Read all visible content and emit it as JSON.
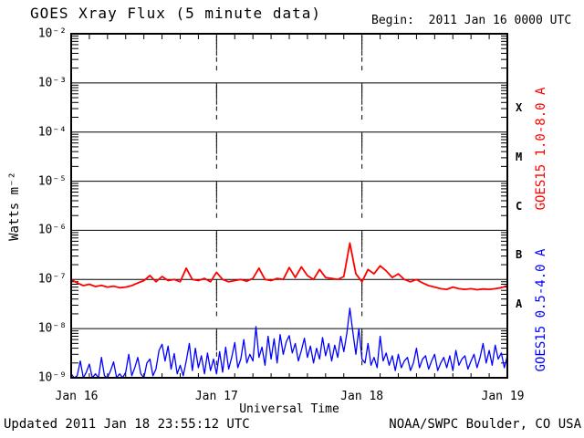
{
  "header": {
    "title": "GOES Xray Flux (5 minute data)",
    "begin_label": "Begin:  2011 Jan 16 0000 UTC"
  },
  "footer": {
    "updated": "Updated 2011 Jan 18 23:55:12 UTC",
    "source": "NOAA/SWPC Boulder, CO USA"
  },
  "colors": {
    "long_band": "#ff0000",
    "short_band": "#0000ff",
    "axis": "#000000",
    "background": "#ffffff"
  },
  "chart_data": {
    "type": "line",
    "title": "GOES Xray Flux (5 minute data)",
    "xlabel": "Universal Time",
    "ylabel": "Watts m⁻²",
    "x_unit": "hours since 2011 Jan 16 0000 UTC",
    "xlim": [
      0,
      72
    ],
    "ylog10_lim": [
      -9,
      -2
    ],
    "grid": "horizontal-major",
    "legend_position": "right-rotated",
    "x_tick_hours": [
      0,
      24,
      48,
      72
    ],
    "x_tick_labels": [
      "Jan 16",
      "Jan 17",
      "Jan 18",
      "Jan 19"
    ],
    "x_minor_tick_hours_step": 3,
    "day_boundary_hours": [
      24,
      48
    ],
    "y_tick_log10": [
      -2,
      -3,
      -4,
      -5,
      -6,
      -7,
      -8,
      -9
    ],
    "y_tick_labels": [
      "10⁻²",
      "10⁻³",
      "10⁻⁴",
      "10⁻⁵",
      "10⁻⁶",
      "10⁻⁷",
      "10⁻⁸",
      "10⁻⁹"
    ],
    "flare_classes": [
      {
        "label": "X",
        "log10_mid": -3.5
      },
      {
        "label": "M",
        "log10_mid": -4.5
      },
      {
        "label": "C",
        "log10_mid": -5.5
      },
      {
        "label": "B",
        "log10_mid": -6.5
      },
      {
        "label": "A",
        "log10_mid": -7.5
      }
    ],
    "series": [
      {
        "name": "GOES15 1.0-8.0 A",
        "color": "#ff0000",
        "x0_hours": 0,
        "dx_hours": 1,
        "values": [
          1e-07,
          8.5e-08,
          7.5e-08,
          8e-08,
          7.2e-08,
          7.6e-08,
          7e-08,
          7.3e-08,
          6.8e-08,
          7e-08,
          7.5e-08,
          8.5e-08,
          9.5e-08,
          1.2e-07,
          9e-08,
          1.15e-07,
          9.5e-08,
          1e-07,
          9e-08,
          1.7e-07,
          1e-07,
          9.5e-08,
          1.05e-07,
          9e-08,
          1.4e-07,
          1e-07,
          9e-08,
          9.5e-08,
          1e-07,
          9.2e-08,
          1.05e-07,
          1.7e-07,
          1e-07,
          9.5e-08,
          1.05e-07,
          1e-07,
          1.75e-07,
          1.1e-07,
          1.8e-07,
          1.2e-07,
          1e-07,
          1.6e-07,
          1.1e-07,
          1.05e-07,
          1e-07,
          1.15e-07,
          5.5e-07,
          1.3e-07,
          9e-08,
          1.6e-07,
          1.3e-07,
          1.9e-07,
          1.5e-07,
          1.1e-07,
          1.3e-07,
          1e-07,
          9e-08,
          1e-07,
          8.5e-08,
          7.5e-08,
          7e-08,
          6.5e-08,
          6.3e-08,
          7e-08,
          6.5e-08,
          6.3e-08,
          6.5e-08,
          6.2e-08,
          6.4e-08,
          6.3e-08,
          6.5e-08,
          6.8e-08,
          7.5e-08
        ]
      },
      {
        "name": "GOES15 0.5-4.0 A",
        "color": "#0000ff",
        "x0_hours": 0,
        "dx_hours": 0.5,
        "values": [
          1.2e-09,
          1e-09,
          1.1e-09,
          2.2e-09,
          1e-09,
          1.3e-09,
          1.9e-09,
          1e-09,
          1.2e-09,
          1e-09,
          2.6e-09,
          1.1e-09,
          1e-09,
          1.4e-09,
          2.1e-09,
          1e-09,
          1.2e-09,
          1e-09,
          1.3e-09,
          3e-09,
          1.1e-09,
          1.6e-09,
          2.6e-09,
          1.2e-09,
          1e-09,
          2e-09,
          2.4e-09,
          1.1e-09,
          1.5e-09,
          3.6e-09,
          4.8e-09,
          2.2e-09,
          4.4e-09,
          1.5e-09,
          3.1e-09,
          1.2e-09,
          1.8e-09,
          1.1e-09,
          2.2e-09,
          5e-09,
          1.4e-09,
          4e-09,
          1.6e-09,
          2.8e-09,
          1.2e-09,
          3.2e-09,
          1.4e-09,
          2.4e-09,
          1.2e-09,
          3.4e-09,
          1.3e-09,
          4.2e-09,
          1.5e-09,
          2.6e-09,
          5.2e-09,
          1.6e-09,
          2.4e-09,
          6e-09,
          2e-09,
          3e-09,
          2.2e-09,
          1.1e-08,
          2.6e-09,
          4.2e-09,
          1.8e-09,
          7e-09,
          2.4e-09,
          6.2e-09,
          2e-09,
          7.6e-09,
          3e-09,
          5.4e-09,
          7.2e-09,
          3.2e-09,
          5e-09,
          2.2e-09,
          3.6e-09,
          6.4e-09,
          2.6e-09,
          4.4e-09,
          2e-09,
          4e-09,
          2.4e-09,
          6.6e-09,
          2.8e-09,
          5e-09,
          2.2e-09,
          4.6e-09,
          2.6e-09,
          7e-09,
          3.4e-09,
          8e-09,
          2.6e-08,
          8.5e-09,
          3e-09,
          1e-08,
          2.4e-09,
          2e-09,
          5e-09,
          1.8e-09,
          2.6e-09,
          1.6e-09,
          7e-09,
          2.2e-09,
          3.2e-09,
          1.8e-09,
          2.8e-09,
          1.4e-09,
          3e-09,
          1.6e-09,
          2.2e-09,
          2.6e-09,
          1.4e-09,
          2e-09,
          4e-09,
          1.6e-09,
          2.4e-09,
          2.8e-09,
          1.5e-09,
          2.2e-09,
          3e-09,
          1.4e-09,
          2e-09,
          2.6e-09,
          1.6e-09,
          2.8e-09,
          1.4e-09,
          3.6e-09,
          1.8e-09,
          2.4e-09,
          2.8e-09,
          1.5e-09,
          2.2e-09,
          3e-09,
          1.6e-09,
          2.6e-09,
          5e-09,
          2e-09,
          3.6e-09,
          1.8e-09,
          4.6e-09,
          2.4e-09,
          3.2e-09,
          1.6e-09,
          2.8e-09
        ]
      }
    ]
  }
}
